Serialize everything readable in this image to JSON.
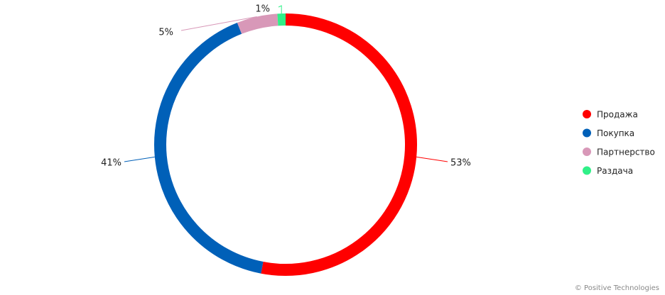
{
  "chart_data": {
    "type": "donut",
    "categories": [
      "Продажа",
      "Покупка",
      "Партнерство",
      "Раздача"
    ],
    "values": [
      53,
      41,
      5,
      1
    ],
    "value_labels": [
      "53%",
      "41%",
      "5%",
      "1%"
    ],
    "colors": [
      "#ff0000",
      "#0060b8",
      "#d898b8",
      "#30f088"
    ],
    "legend": "right"
  },
  "credit": "© Positive Technologies"
}
